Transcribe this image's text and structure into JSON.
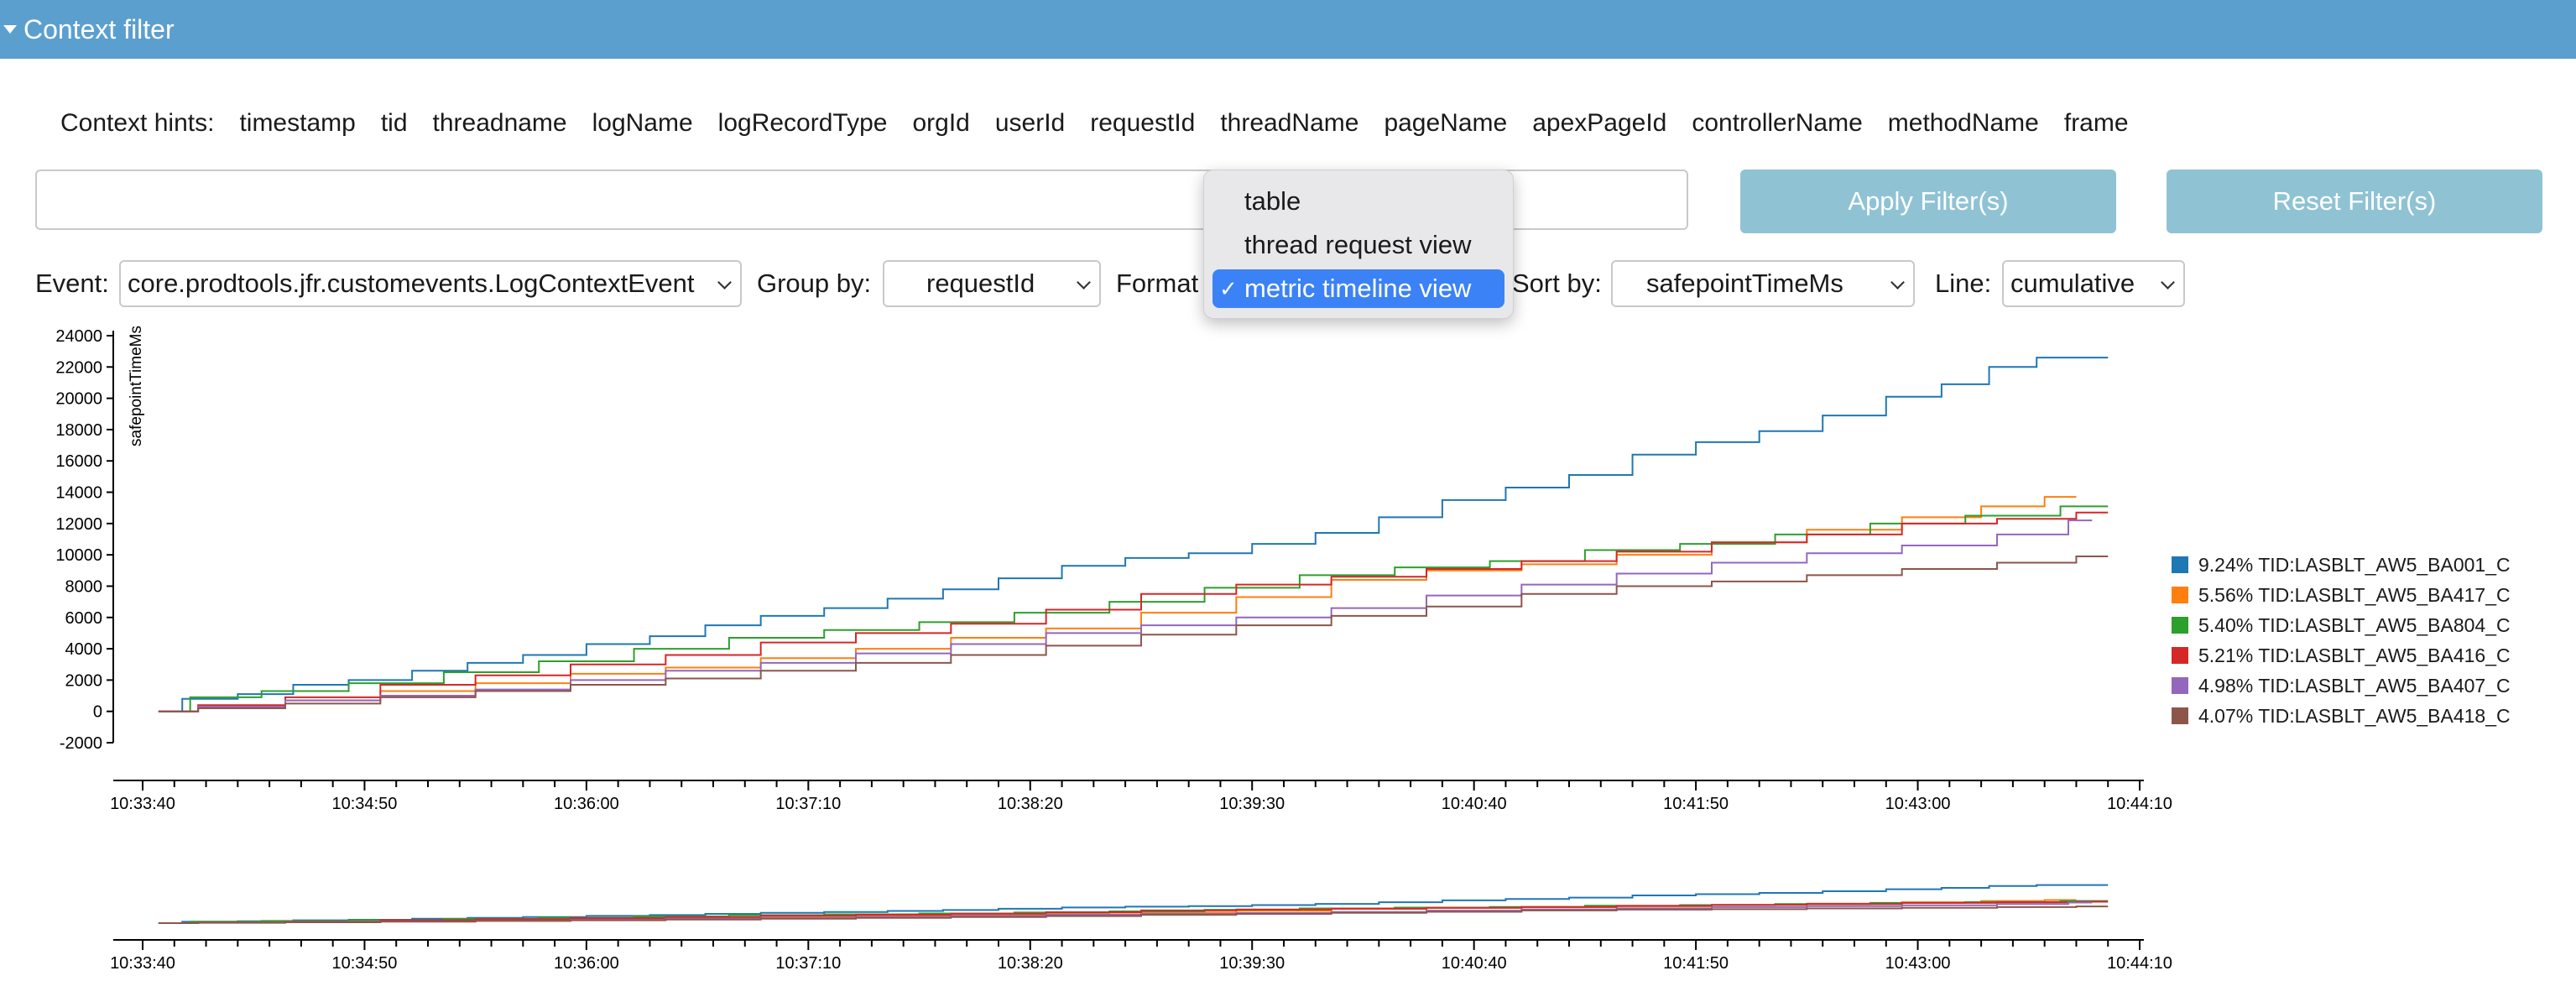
{
  "header": {
    "title": "Context filter"
  },
  "hints": {
    "label": "Context hints:",
    "items": [
      "timestamp",
      "tid",
      "threadname",
      "logName",
      "logRecordType",
      "orgId",
      "userId",
      "requestId",
      "threadName",
      "pageName",
      "apexPageId",
      "controllerName",
      "methodName",
      "frame"
    ]
  },
  "filter": {
    "value": ""
  },
  "buttons": {
    "apply": "Apply Filter(s)",
    "reset": "Reset Filter(s)"
  },
  "controls": {
    "event_label": "Event:",
    "event_value": "core.prodtools.jfr.customevents.LogContextEvent",
    "group_label": "Group by:",
    "group_value": "requestId",
    "format_label": "Format",
    "sort_label": "Sort by:",
    "sort_value": "safepointTimeMs",
    "line_label": "Line:",
    "line_value": "cumulative"
  },
  "format_dropdown": {
    "options": [
      "table",
      "thread request view",
      "metric timeline view"
    ],
    "selected_index": 2,
    "check_glyph": "✓"
  },
  "chart_data": {
    "type": "line",
    "ylabel": "safepointTimeMs",
    "xlabel": "",
    "y_ticks": [
      -2000,
      0,
      2000,
      4000,
      6000,
      8000,
      10000,
      12000,
      14000,
      16000,
      18000,
      20000,
      22000,
      24000
    ],
    "ylim": [
      -2000,
      24500
    ],
    "x_tick_labels": [
      "10:33:40",
      "10:34:50",
      "10:36:00",
      "10:37:10",
      "10:38:20",
      "10:39:30",
      "10:40:40",
      "10:41:50",
      "10:43:00",
      "10:44:10"
    ],
    "x_unit": "seconds since 10:33:40 axis origin",
    "xlim_seconds": [
      0,
      630
    ],
    "legend_position": "right",
    "series": [
      {
        "name": "9.24% TID:LASBLT_AW5_BA001_C",
        "color": "#1f77b4",
        "points": [
          [
            5,
            0
          ],
          [
            20,
            800
          ],
          [
            40,
            1100
          ],
          [
            55,
            1700
          ],
          [
            75,
            2000
          ],
          [
            95,
            2600
          ],
          [
            110,
            3100
          ],
          [
            130,
            3600
          ],
          [
            150,
            4300
          ],
          [
            170,
            4800
          ],
          [
            185,
            5500
          ],
          [
            205,
            6100
          ],
          [
            225,
            6600
          ],
          [
            245,
            7200
          ],
          [
            260,
            7800
          ],
          [
            280,
            8500
          ],
          [
            300,
            9300
          ],
          [
            320,
            9800
          ],
          [
            340,
            10100
          ],
          [
            360,
            10700
          ],
          [
            380,
            11400
          ],
          [
            400,
            12400
          ],
          [
            420,
            13500
          ],
          [
            440,
            14300
          ],
          [
            460,
            15100
          ],
          [
            480,
            16400
          ],
          [
            500,
            17200
          ],
          [
            520,
            17900
          ],
          [
            540,
            18900
          ],
          [
            560,
            20100
          ],
          [
            575,
            20900
          ],
          [
            590,
            22000
          ],
          [
            605,
            22600
          ],
          [
            620,
            22600
          ]
        ]
      },
      {
        "name": "5.56% TID:LASBLT_AW5_BA417_C",
        "color": "#ff7f0e",
        "points": [
          [
            5,
            0
          ],
          [
            30,
            300
          ],
          [
            60,
            700
          ],
          [
            90,
            1300
          ],
          [
            120,
            1800
          ],
          [
            150,
            2400
          ],
          [
            180,
            2800
          ],
          [
            210,
            3400
          ],
          [
            240,
            4000
          ],
          [
            270,
            4700
          ],
          [
            300,
            5300
          ],
          [
            330,
            6300
          ],
          [
            360,
            7300
          ],
          [
            390,
            8400
          ],
          [
            420,
            9000
          ],
          [
            450,
            9400
          ],
          [
            480,
            10000
          ],
          [
            510,
            10800
          ],
          [
            540,
            11600
          ],
          [
            570,
            12400
          ],
          [
            590,
            13100
          ],
          [
            610,
            13700
          ]
        ]
      },
      {
        "name": "5.40% TID:LASBLT_AW5_BA804_C",
        "color": "#2ca02c",
        "points": [
          [
            5,
            0
          ],
          [
            25,
            900
          ],
          [
            50,
            1300
          ],
          [
            80,
            1800
          ],
          [
            110,
            2500
          ],
          [
            140,
            3200
          ],
          [
            170,
            4000
          ],
          [
            200,
            4700
          ],
          [
            230,
            5200
          ],
          [
            260,
            5700
          ],
          [
            290,
            6300
          ],
          [
            320,
            7000
          ],
          [
            350,
            7900
          ],
          [
            380,
            8700
          ],
          [
            410,
            9200
          ],
          [
            440,
            9600
          ],
          [
            470,
            10300
          ],
          [
            500,
            10700
          ],
          [
            530,
            11300
          ],
          [
            560,
            12000
          ],
          [
            590,
            12500
          ],
          [
            620,
            13100
          ]
        ]
      },
      {
        "name": "5.21% TID:LASBLT_AW5_BA416_C",
        "color": "#d62728",
        "points": [
          [
            5,
            0
          ],
          [
            30,
            400
          ],
          [
            60,
            900
          ],
          [
            90,
            1700
          ],
          [
            120,
            2300
          ],
          [
            150,
            3000
          ],
          [
            180,
            3600
          ],
          [
            210,
            4400
          ],
          [
            240,
            5000
          ],
          [
            270,
            5600
          ],
          [
            300,
            6500
          ],
          [
            330,
            7500
          ],
          [
            360,
            8100
          ],
          [
            390,
            8600
          ],
          [
            420,
            9100
          ],
          [
            450,
            9600
          ],
          [
            480,
            10200
          ],
          [
            510,
            10800
          ],
          [
            540,
            11300
          ],
          [
            570,
            12000
          ],
          [
            600,
            12300
          ],
          [
            620,
            12700
          ]
        ]
      },
      {
        "name": "4.98% TID:LASBLT_AW5_BA407_C",
        "color": "#9467bd",
        "points": [
          [
            5,
            0
          ],
          [
            30,
            300
          ],
          [
            60,
            700
          ],
          [
            90,
            1000
          ],
          [
            120,
            1400
          ],
          [
            150,
            2000
          ],
          [
            180,
            2600
          ],
          [
            210,
            3100
          ],
          [
            240,
            3700
          ],
          [
            270,
            4300
          ],
          [
            300,
            5000
          ],
          [
            330,
            5500
          ],
          [
            360,
            6000
          ],
          [
            390,
            6600
          ],
          [
            420,
            7400
          ],
          [
            450,
            8100
          ],
          [
            480,
            8800
          ],
          [
            510,
            9500
          ],
          [
            540,
            10100
          ],
          [
            570,
            10600
          ],
          [
            600,
            11300
          ],
          [
            615,
            12200
          ]
        ]
      },
      {
        "name": "4.07% TID:LASBLT_AW5_BA418_C",
        "color": "#8c564b",
        "points": [
          [
            5,
            0
          ],
          [
            30,
            200
          ],
          [
            60,
            500
          ],
          [
            90,
            900
          ],
          [
            120,
            1300
          ],
          [
            150,
            1700
          ],
          [
            180,
            2100
          ],
          [
            210,
            2600
          ],
          [
            240,
            3100
          ],
          [
            270,
            3600
          ],
          [
            300,
            4200
          ],
          [
            330,
            4900
          ],
          [
            360,
            5500
          ],
          [
            390,
            6100
          ],
          [
            420,
            6700
          ],
          [
            450,
            7500
          ],
          [
            480,
            8000
          ],
          [
            510,
            8300
          ],
          [
            540,
            8700
          ],
          [
            570,
            9100
          ],
          [
            600,
            9500
          ],
          [
            620,
            9900
          ]
        ]
      }
    ]
  }
}
